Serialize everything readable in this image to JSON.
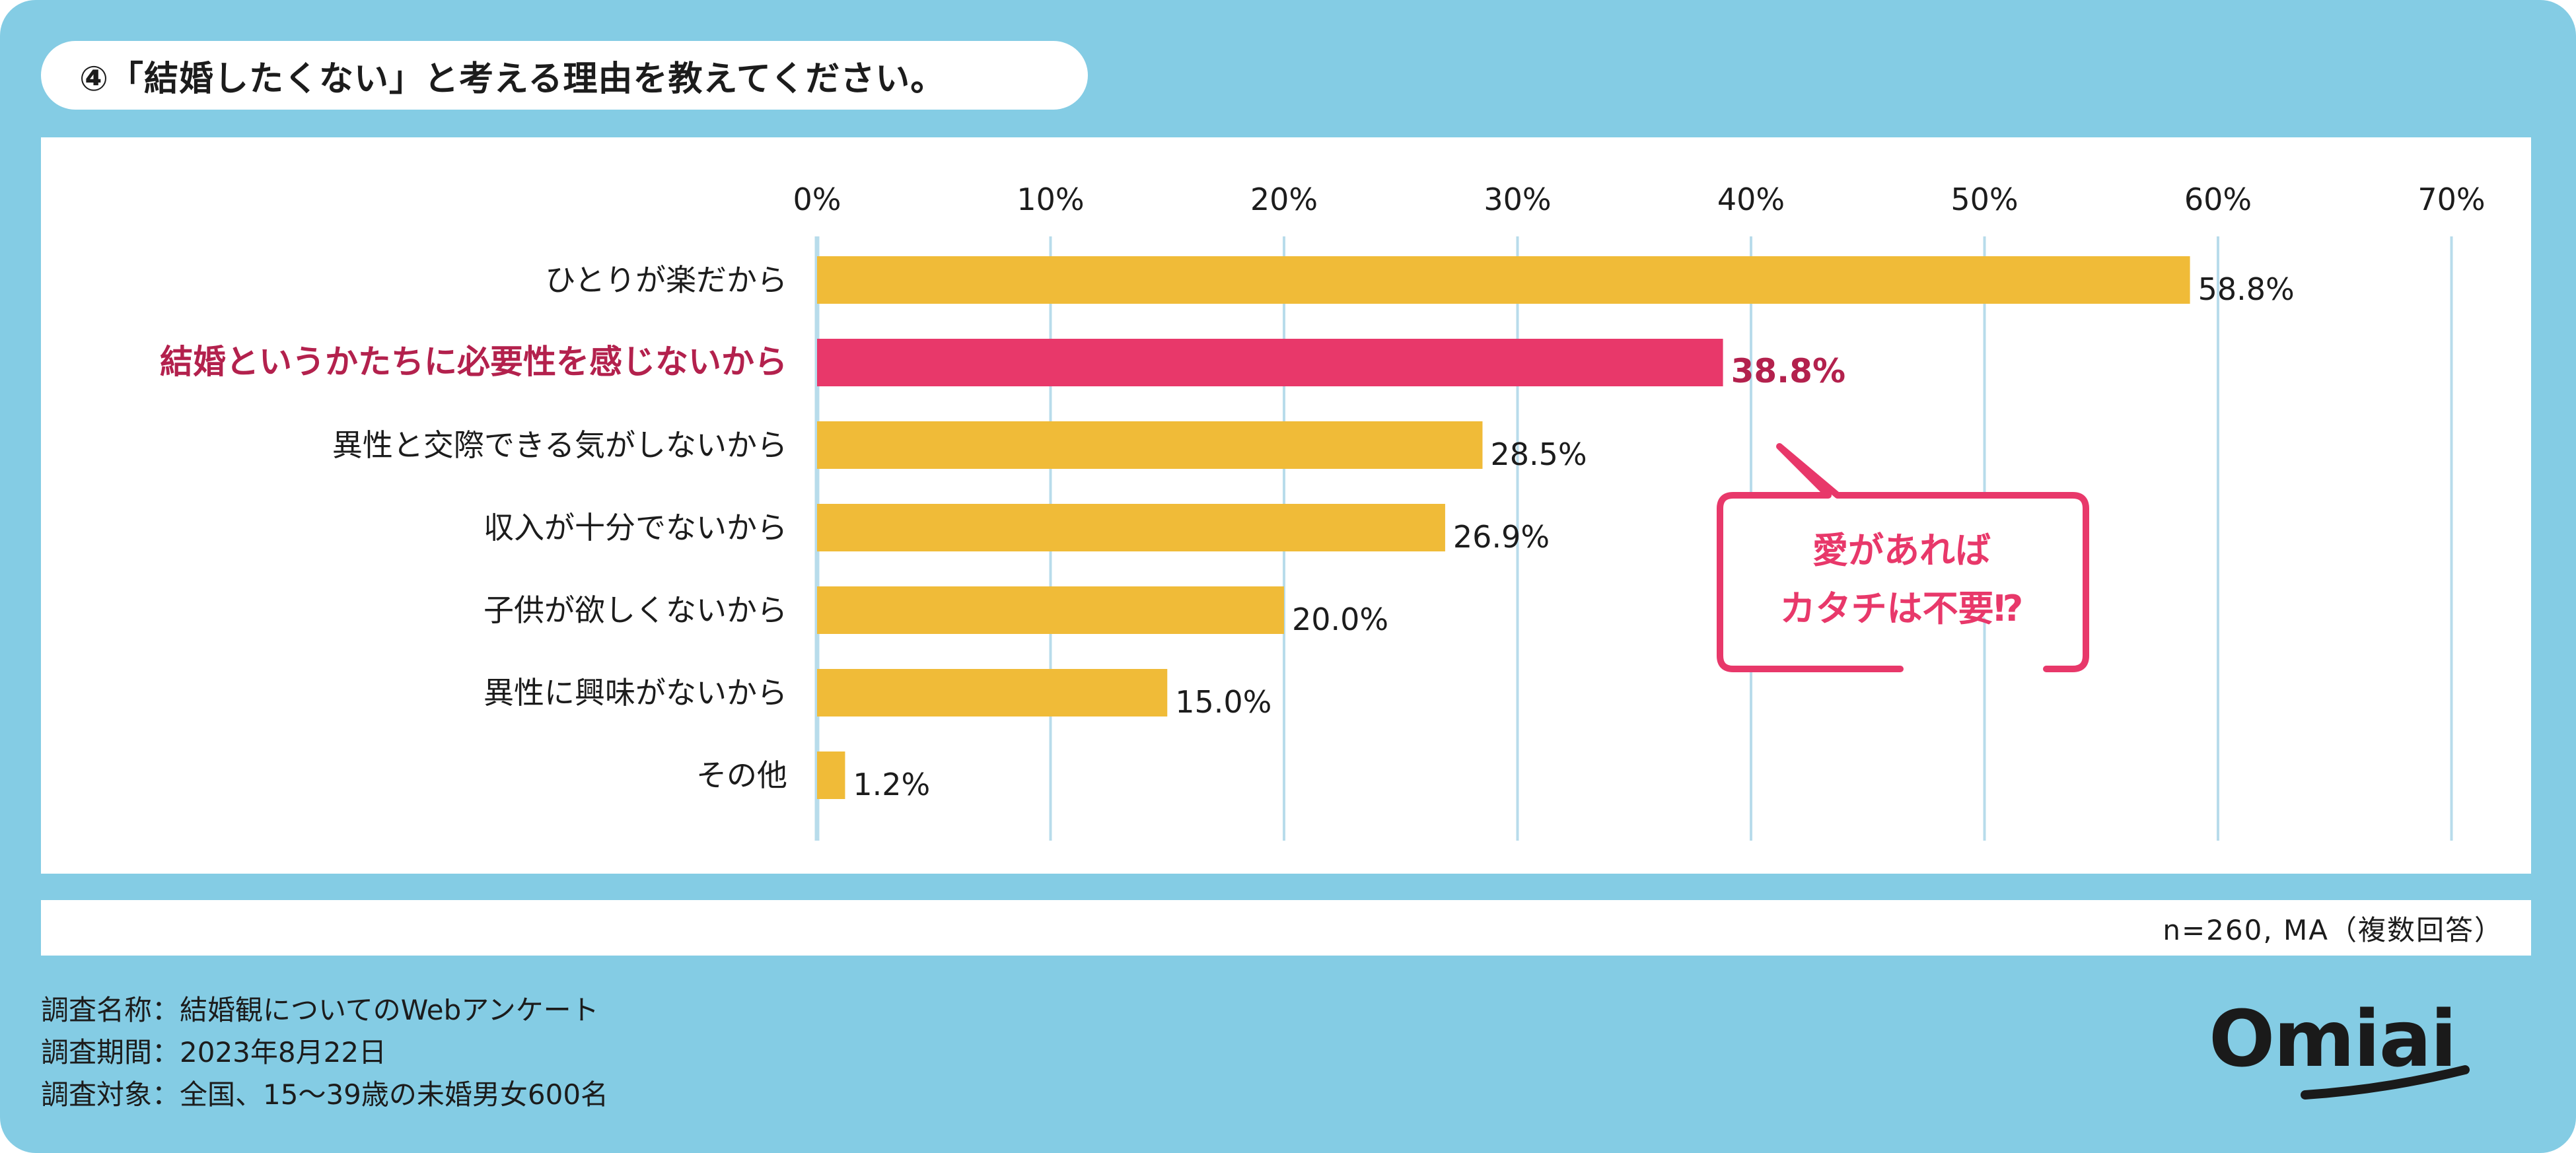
{
  "title": "④「結婚したくない」と考える理由を教えてください。",
  "note": "n=260, MA（複数回答）",
  "survey": {
    "name": "調査名称：結婚観についてのWebアンケート",
    "period": "調査期間：2023年8月22日",
    "target": "調査対象：全国、15～39歳の未婚男女600名"
  },
  "callout": {
    "line1": "愛があれば",
    "line2": "カタチは不要⁉"
  },
  "logo": {
    "text": "Omiai"
  },
  "colors": {
    "bar": "#f0bb38",
    "highlight": "#e8386a",
    "highlight_text": "#b3214d",
    "frame": "#84cce4",
    "gridline": "#b8dceb"
  },
  "chart_data": {
    "type": "bar",
    "orientation": "horizontal",
    "categories": [
      "ひとりが楽だから",
      "結婚というかたちに必要性を感じないから",
      "異性と交際できる気がしないから",
      "収入が十分でないから",
      "子供が欲しくないから",
      "異性に興味がないから",
      "その他"
    ],
    "values": [
      58.8,
      38.8,
      28.5,
      26.9,
      20.0,
      15.0,
      1.2
    ],
    "value_labels": [
      "58.8%",
      "38.8%",
      "28.5%",
      "26.9%",
      "20.0%",
      "15.0%",
      "1.2%"
    ],
    "highlight_index": 1,
    "xlim": [
      0,
      70
    ],
    "ticks": [
      0,
      10,
      20,
      30,
      40,
      50,
      60,
      70
    ],
    "tick_labels": [
      "0%",
      "10%",
      "20%",
      "30%",
      "40%",
      "50%",
      "60%",
      "70%"
    ],
    "grid": true,
    "legend": "none"
  }
}
